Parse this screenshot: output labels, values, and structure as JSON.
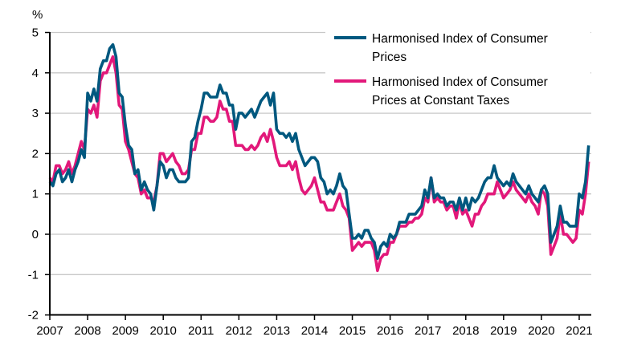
{
  "chart_data": {
    "type": "line",
    "ylabel": "%",
    "ylim": [
      -2,
      5
    ],
    "yticks": [
      -2,
      -1,
      0,
      1,
      2,
      3,
      4,
      5
    ],
    "xlim": [
      "2007-01",
      "2021-04"
    ],
    "xticks": [
      "2007",
      "2008",
      "2009",
      "2010",
      "2011",
      "2012",
      "2013",
      "2014",
      "2015",
      "2016",
      "2017",
      "2018",
      "2019",
      "2020",
      "2021"
    ],
    "frequency": "monthly",
    "grid": "horizontal",
    "legend_position": "top-right",
    "series": [
      {
        "name": "Harmonised Index of Consumer Prices",
        "legend_lines": [
          "Harmonised Index of Consumer",
          "Prices"
        ],
        "color": "#00587f",
        "data": {
          "2007": [
            1.3,
            1.2,
            1.5,
            1.6,
            1.3,
            1.4,
            1.6,
            1.3,
            1.6,
            1.8,
            2.1,
            1.9
          ],
          "2008": [
            3.5,
            3.3,
            3.6,
            3.3,
            4.1,
            4.3,
            4.3,
            4.6,
            4.7,
            4.4,
            3.5,
            3.4
          ],
          "2009": [
            2.7,
            2.2,
            2.1,
            1.5,
            1.6,
            1.1,
            1.3,
            1.1,
            1.0,
            0.6,
            1.2,
            1.8
          ],
          "2010": [
            1.7,
            1.4,
            1.6,
            1.6,
            1.4,
            1.3,
            1.3,
            1.3,
            1.4,
            2.3,
            2.4,
            2.8
          ],
          "2011": [
            3.1,
            3.5,
            3.5,
            3.4,
            3.4,
            3.4,
            3.7,
            3.5,
            3.5,
            3.2,
            3.2,
            2.6
          ],
          "2012": [
            3.0,
            3.0,
            2.9,
            3.0,
            3.1,
            2.9,
            3.1,
            3.3,
            3.4,
            3.5,
            3.2,
            3.5
          ],
          "2013": [
            2.6,
            2.5,
            2.5,
            2.4,
            2.5,
            2.3,
            2.5,
            2.1,
            1.9,
            1.7,
            1.8,
            1.9
          ],
          "2014": [
            1.9,
            1.8,
            1.4,
            1.3,
            1.0,
            1.1,
            1.0,
            1.2,
            1.5,
            1.2,
            1.1,
            0.5
          ],
          "2015": [
            -0.1,
            -0.1,
            0.0,
            -0.1,
            0.1,
            0.1,
            -0.1,
            -0.2,
            -0.6,
            -0.3,
            -0.2,
            -0.3
          ],
          "2016": [
            0.0,
            -0.1,
            0.0,
            0.3,
            0.3,
            0.3,
            0.5,
            0.5,
            0.5,
            0.6,
            0.7,
            1.1
          ],
          "2017": [
            0.9,
            1.4,
            0.9,
            1.0,
            0.9,
            0.9,
            0.7,
            0.8,
            0.8,
            0.6,
            0.9,
            0.6
          ],
          "2018": [
            0.9,
            0.6,
            0.9,
            0.8,
            0.9,
            1.1,
            1.3,
            1.4,
            1.4,
            1.7,
            1.4,
            1.3
          ],
          "2019": [
            1.2,
            1.3,
            1.2,
            1.5,
            1.3,
            1.2,
            1.1,
            1.0,
            1.2,
            1.0,
            0.9,
            0.8
          ],
          "2020": [
            1.1,
            1.2,
            1.0,
            -0.2,
            0.0,
            0.2,
            0.7,
            0.3,
            0.3,
            0.2,
            0.2,
            0.2
          ],
          "2021": [
            1.0,
            0.9,
            1.3,
            2.2
          ]
        }
      },
      {
        "name": "Harmonised Index of Consumer Prices at Constant Taxes",
        "legend_lines": [
          "Harmonised Index of Consumer",
          "Prices at Constant Taxes"
        ],
        "color": "#e2187a",
        "data": {
          "2007": [
            1.4,
            1.3,
            1.7,
            1.7,
            1.5,
            1.6,
            1.8,
            1.5,
            1.7,
            2.0,
            2.3,
            2.1
          ],
          "2008": [
            3.1,
            3.0,
            3.2,
            2.9,
            3.8,
            4.0,
            4.0,
            4.2,
            4.4,
            4.0,
            3.2,
            3.1
          ],
          "2009": [
            2.3,
            2.1,
            1.8,
            1.5,
            1.4,
            1.0,
            1.1,
            0.9,
            0.9,
            0.8,
            1.2,
            2.0
          ],
          "2010": [
            2.0,
            1.8,
            1.9,
            2.0,
            1.8,
            1.7,
            1.5,
            1.5,
            1.6,
            2.1,
            2.1,
            2.5
          ],
          "2011": [
            2.5,
            2.9,
            2.9,
            2.8,
            2.8,
            2.9,
            3.3,
            3.1,
            3.1,
            2.8,
            2.8,
            2.2
          ],
          "2012": [
            2.2,
            2.2,
            2.1,
            2.1,
            2.2,
            2.1,
            2.2,
            2.4,
            2.5,
            2.3,
            2.6,
            2.3
          ],
          "2013": [
            1.9,
            1.7,
            1.7,
            1.7,
            1.8,
            1.6,
            1.8,
            1.4,
            1.1,
            1.0,
            1.1,
            1.2
          ],
          "2014": [
            1.4,
            1.1,
            0.8,
            0.8,
            0.6,
            0.6,
            0.6,
            0.8,
            1.0,
            0.7,
            0.6,
            0.4
          ],
          "2015": [
            -0.4,
            -0.3,
            -0.2,
            -0.3,
            -0.2,
            -0.2,
            -0.2,
            -0.4,
            -0.9,
            -0.6,
            -0.5,
            -0.5
          ],
          "2016": [
            -0.2,
            -0.2,
            0.0,
            0.2,
            0.2,
            0.2,
            0.3,
            0.3,
            0.4,
            0.4,
            0.5,
            0.9
          ],
          "2017": [
            0.8,
            1.4,
            0.8,
            0.9,
            0.8,
            0.8,
            0.6,
            0.7,
            0.7,
            0.4,
            0.8,
            0.5
          ],
          "2018": [
            0.6,
            0.4,
            0.2,
            0.5,
            0.5,
            0.7,
            0.8,
            1.0,
            1.0,
            1.0,
            1.3,
            1.1
          ],
          "2019": [
            0.9,
            1.0,
            1.1,
            1.3,
            1.1,
            1.0,
            0.9,
            0.8,
            1.0,
            0.8,
            0.7,
            0.5
          ],
          "2020": [
            1.1,
            1.0,
            0.7,
            -0.5,
            -0.3,
            -0.1,
            0.5,
            0.0,
            0.0,
            -0.1,
            -0.2,
            -0.1
          ],
          "2021": [
            0.6,
            0.5,
            1.0,
            1.8
          ]
        }
      }
    ]
  }
}
